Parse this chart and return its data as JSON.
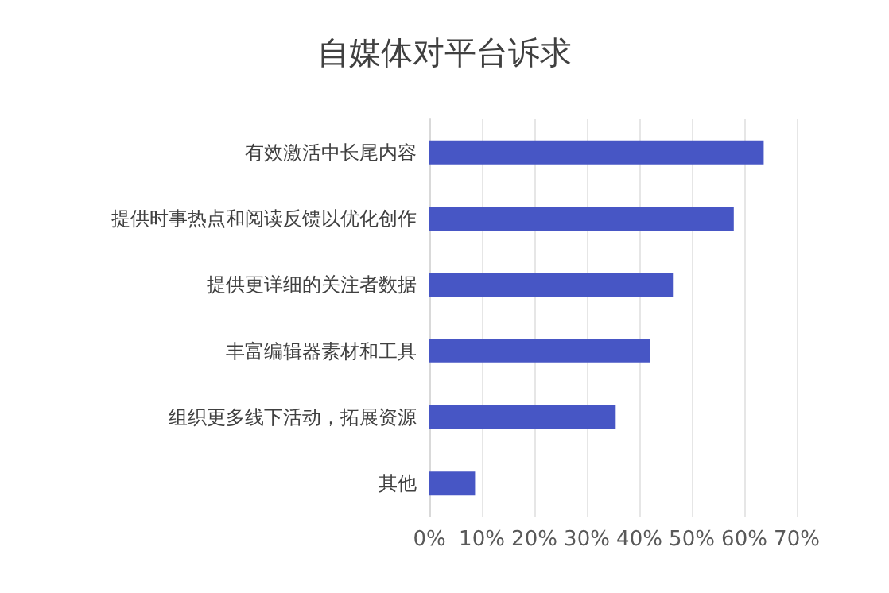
{
  "chart_data": {
    "type": "bar",
    "orientation": "horizontal",
    "title": "自媒体对平台诉求",
    "categories": [
      "有效激活中长尾内容",
      "提供时事热点和阅读反馈以优化创作",
      "提供更详细的关注者数据",
      "丰富编辑器素材和工具",
      "组织更多线下活动，拓展资源",
      "其他"
    ],
    "values": [
      63.7,
      58,
      46.4,
      42,
      35.5,
      8.7
    ],
    "color": "#4756c5",
    "xlim": [
      0,
      70
    ],
    "xticks": [
      {
        "value": 0,
        "label": "0%"
      },
      {
        "value": 10,
        "label": "10%"
      },
      {
        "value": 20,
        "label": "20%"
      },
      {
        "value": 30,
        "label": "30%"
      },
      {
        "value": 40,
        "label": "40%"
      },
      {
        "value": 50,
        "label": "50%"
      },
      {
        "value": 60,
        "label": "60%"
      },
      {
        "value": 70,
        "label": "70%"
      }
    ],
    "grid": "x"
  }
}
